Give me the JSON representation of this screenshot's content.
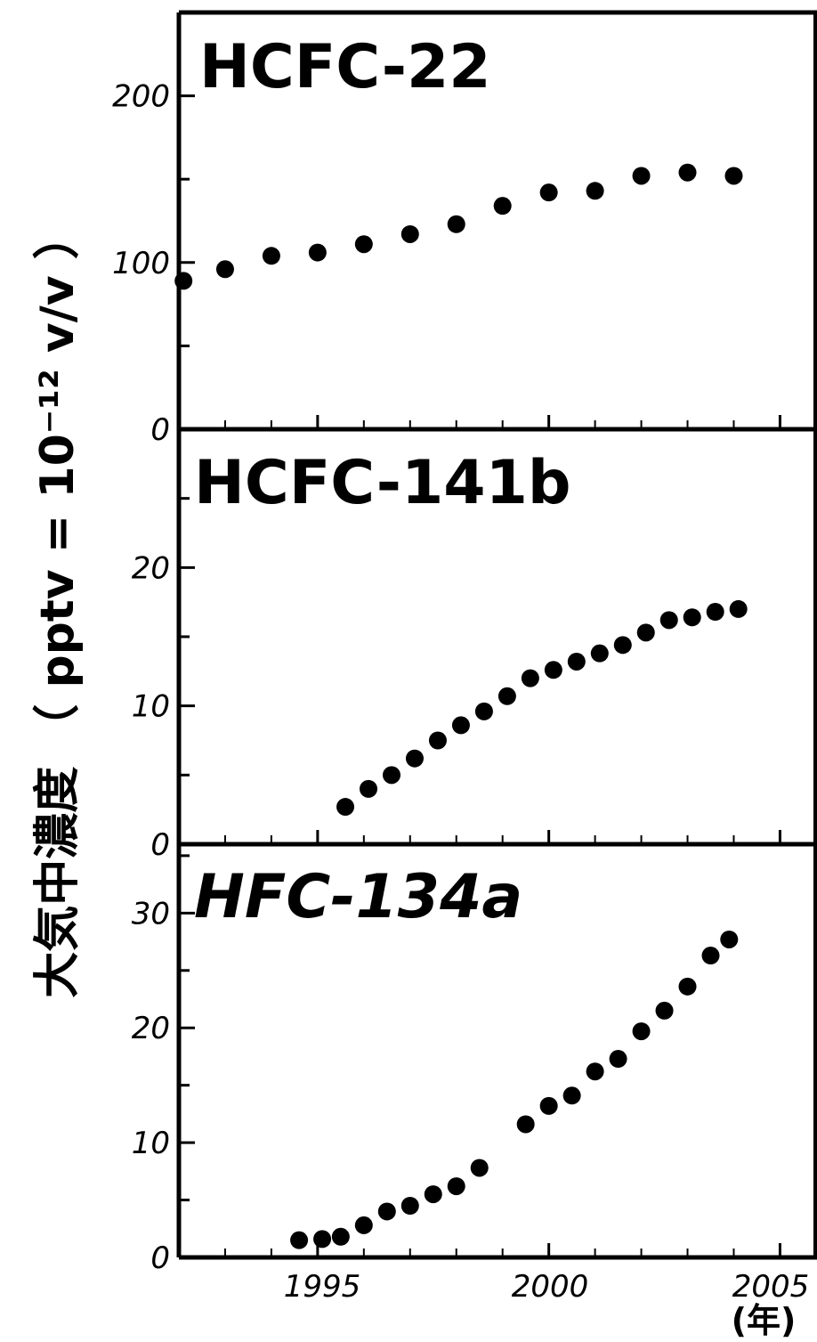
{
  "figure": {
    "ylabel": "大気中濃度 （ pptv = 10⁻¹² v/v ）",
    "xunit": "(年)",
    "x_tick_labels": [
      "1995",
      "2000",
      "2005"
    ]
  },
  "chart_data": [
    {
      "type": "scatter",
      "title": "HCFC-22",
      "xlabel": "",
      "ylabel": "大気中濃度 （ pptv = 10⁻¹² v/v ）",
      "xlim": [
        1992,
        2005.8
      ],
      "ylim": [
        0,
        250
      ],
      "y_ticks": [
        0,
        100,
        200
      ],
      "grid": false,
      "x": [
        1992.1,
        1993.0,
        1994.0,
        1995.0,
        1996.0,
        1997.0,
        1998.0,
        1999.0,
        2000.0,
        2001.0,
        2002.0,
        2003.0,
        2004.0
      ],
      "y": [
        89,
        96,
        104,
        106,
        111,
        117,
        123,
        134,
        142,
        143,
        152,
        154,
        152
      ]
    },
    {
      "type": "scatter",
      "title": "HCFC-141b",
      "xlabel": "",
      "ylabel": "大気中濃度 （ pptv = 10⁻¹² v/v ）",
      "xlim": [
        1992,
        2005.8
      ],
      "ylim": [
        0,
        30
      ],
      "y_ticks": [
        0,
        10,
        20
      ],
      "grid": false,
      "x": [
        1995.6,
        1996.1,
        1996.6,
        1997.1,
        1997.6,
        1998.1,
        1998.6,
        1999.1,
        1999.6,
        2000.1,
        2000.6,
        2001.1,
        2001.6,
        2002.1,
        2002.6,
        2003.1,
        2003.6,
        2004.1
      ],
      "y": [
        2.7,
        4.0,
        5.0,
        6.2,
        7.5,
        8.6,
        9.6,
        10.7,
        12.0,
        12.6,
        13.2,
        13.8,
        14.4,
        15.3,
        16.2,
        16.4,
        16.8,
        17.0
      ]
    },
    {
      "type": "scatter",
      "title": "HFC-134a",
      "xlabel": "",
      "ylabel": "大気中濃度 （ pptv = 10⁻¹² v/v ）",
      "xlim": [
        1992,
        2005.8
      ],
      "ylim": [
        0,
        36
      ],
      "y_ticks": [
        0,
        10,
        20,
        30
      ],
      "grid": false,
      "x": [
        1994.6,
        1995.1,
        1995.5,
        1996.0,
        1996.5,
        1997.0,
        1997.5,
        1998.0,
        1998.5,
        1999.5,
        2000.0,
        2000.5,
        2001.0,
        2001.5,
        2002.0,
        2002.5,
        2003.0,
        2003.5,
        2003.9
      ],
      "y": [
        1.5,
        1.6,
        1.8,
        2.8,
        4.0,
        4.5,
        5.5,
        6.2,
        7.8,
        11.6,
        13.2,
        14.1,
        16.2,
        17.3,
        19.7,
        21.5,
        23.6,
        26.3,
        27.7
      ]
    }
  ]
}
